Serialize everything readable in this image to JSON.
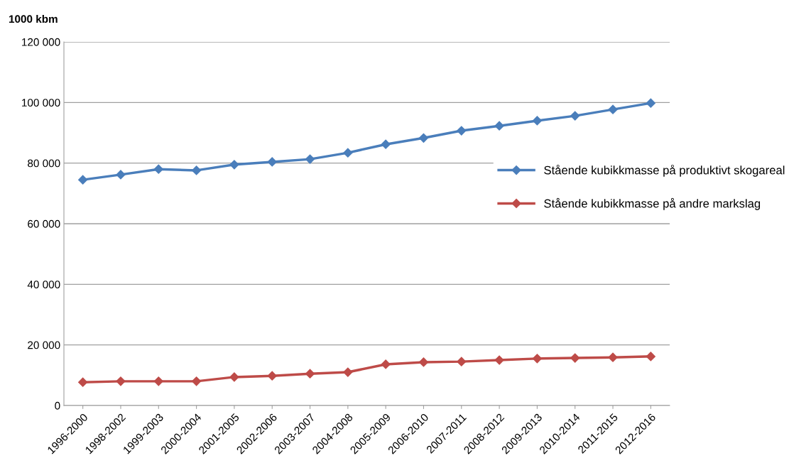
{
  "chart_data": {
    "type": "line",
    "ylabel": "1000 kbm",
    "categories": [
      "1996-2000",
      "1998-2002",
      "1999-2003",
      "2000-2004",
      "2001-2005",
      "2002-2006",
      "2003-2007",
      "2004-2008",
      "2005-2009",
      "2006-2010",
      "2007-2011",
      "2008-2012",
      "2009-2013",
      "2010-2014",
      "2011-2015",
      "2012-2016"
    ],
    "series": [
      {
        "name": "Stående kubikkmasse på produktivt skogareal",
        "color": "#4a7ebb",
        "values": [
          74500,
          76200,
          78000,
          77600,
          79500,
          80400,
          81300,
          83400,
          86200,
          88300,
          90700,
          92300,
          94000,
          95600,
          97700,
          99800
        ]
      },
      {
        "name": "Stående kubikkmasse på andre markslag",
        "color": "#be4b48",
        "values": [
          7700,
          8000,
          8000,
          8000,
          9400,
          9800,
          10500,
          11000,
          13600,
          14300,
          14500,
          15000,
          15500,
          15700,
          15900,
          16200
        ]
      }
    ],
    "ylim": [
      0,
      120000
    ],
    "yticks": [
      {
        "value": 0,
        "label": "0"
      },
      {
        "value": 20000,
        "label": "20 000"
      },
      {
        "value": 40000,
        "label": "40 000"
      },
      {
        "value": 60000,
        "label": "60 000"
      },
      {
        "value": 80000,
        "label": "80 000"
      },
      {
        "value": 100000,
        "label": "100 000"
      },
      {
        "value": 120000,
        "label": "120 000"
      }
    ],
    "grid": "y",
    "legend": "right",
    "marker": "diamond",
    "line_style": "solid"
  }
}
